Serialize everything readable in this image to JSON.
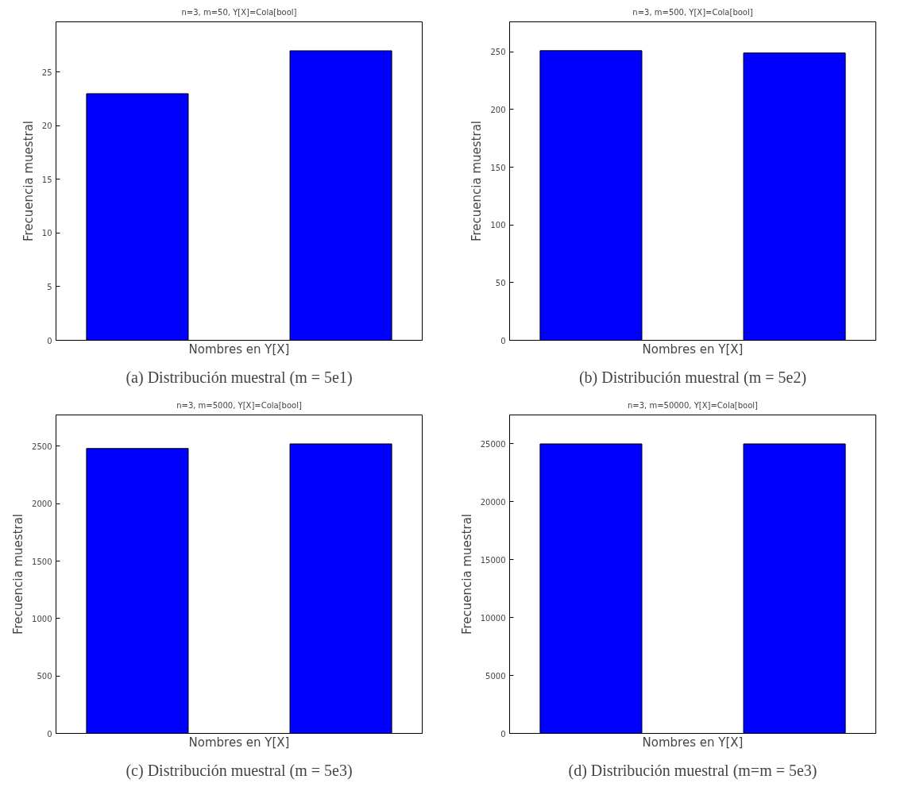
{
  "chart_data": [
    {
      "type": "bar",
      "title": "n=3, m=50, Y[X]=Cola[bool]",
      "xlabel": "Nombres en Y[X]",
      "ylabel": "Frecuencia muestral",
      "categories": [
        null,
        null
      ],
      "values": [
        23,
        27
      ],
      "color": "#0000ff",
      "ylim": [
        0,
        29.7
      ],
      "yticks": [
        0,
        5,
        10,
        15,
        20,
        25
      ],
      "tick_labels": "y",
      "annotations": [
        "(a) Distribución muestral (m = 5e1)"
      ]
    },
    {
      "type": "bar",
      "title": "n=3, m=500, Y[X]=Cola[bool]",
      "xlabel": "Nombres en Y[X]",
      "ylabel": "Frecuencia muestral",
      "categories": [
        null,
        null
      ],
      "values": [
        251,
        249
      ],
      "color": "#0000ff",
      "ylim": [
        0,
        276
      ],
      "yticks": [
        0,
        50,
        100,
        150,
        200,
        250
      ],
      "tick_labels": "y",
      "annotations": [
        "(b) Distribución muestral (m = 5e2)"
      ]
    },
    {
      "type": "bar",
      "title": "n=3, m=5000, Y[X]=Cola[bool]",
      "xlabel": "Nombres en Y[X]",
      "ylabel": "Frecuencia muestral",
      "categories": [
        null,
        null
      ],
      "values": [
        2480,
        2520
      ],
      "color": "#0000ff",
      "ylim": [
        0,
        2772
      ],
      "yticks": [
        0,
        500,
        1000,
        1500,
        2000,
        2500
      ],
      "tick_labels": "y",
      "annotations": [
        "(c) Distribución muestral (m = 5e3)"
      ]
    },
    {
      "type": "bar",
      "title": "n=3, m=50000, Y[X]=Cola[bool]",
      "xlabel": "Nombres en Y[X]",
      "ylabel": "Frecuencia muestral",
      "categories": [
        null,
        null
      ],
      "values": [
        25000,
        25000
      ],
      "color": "#0000ff",
      "ylim": [
        0,
        27500
      ],
      "yticks": [
        0,
        5000,
        10000,
        15000,
        20000,
        25000
      ],
      "tick_labels": "y",
      "annotations": [
        "(d) Distribución muestral (m=m = 5e3)"
      ]
    }
  ]
}
